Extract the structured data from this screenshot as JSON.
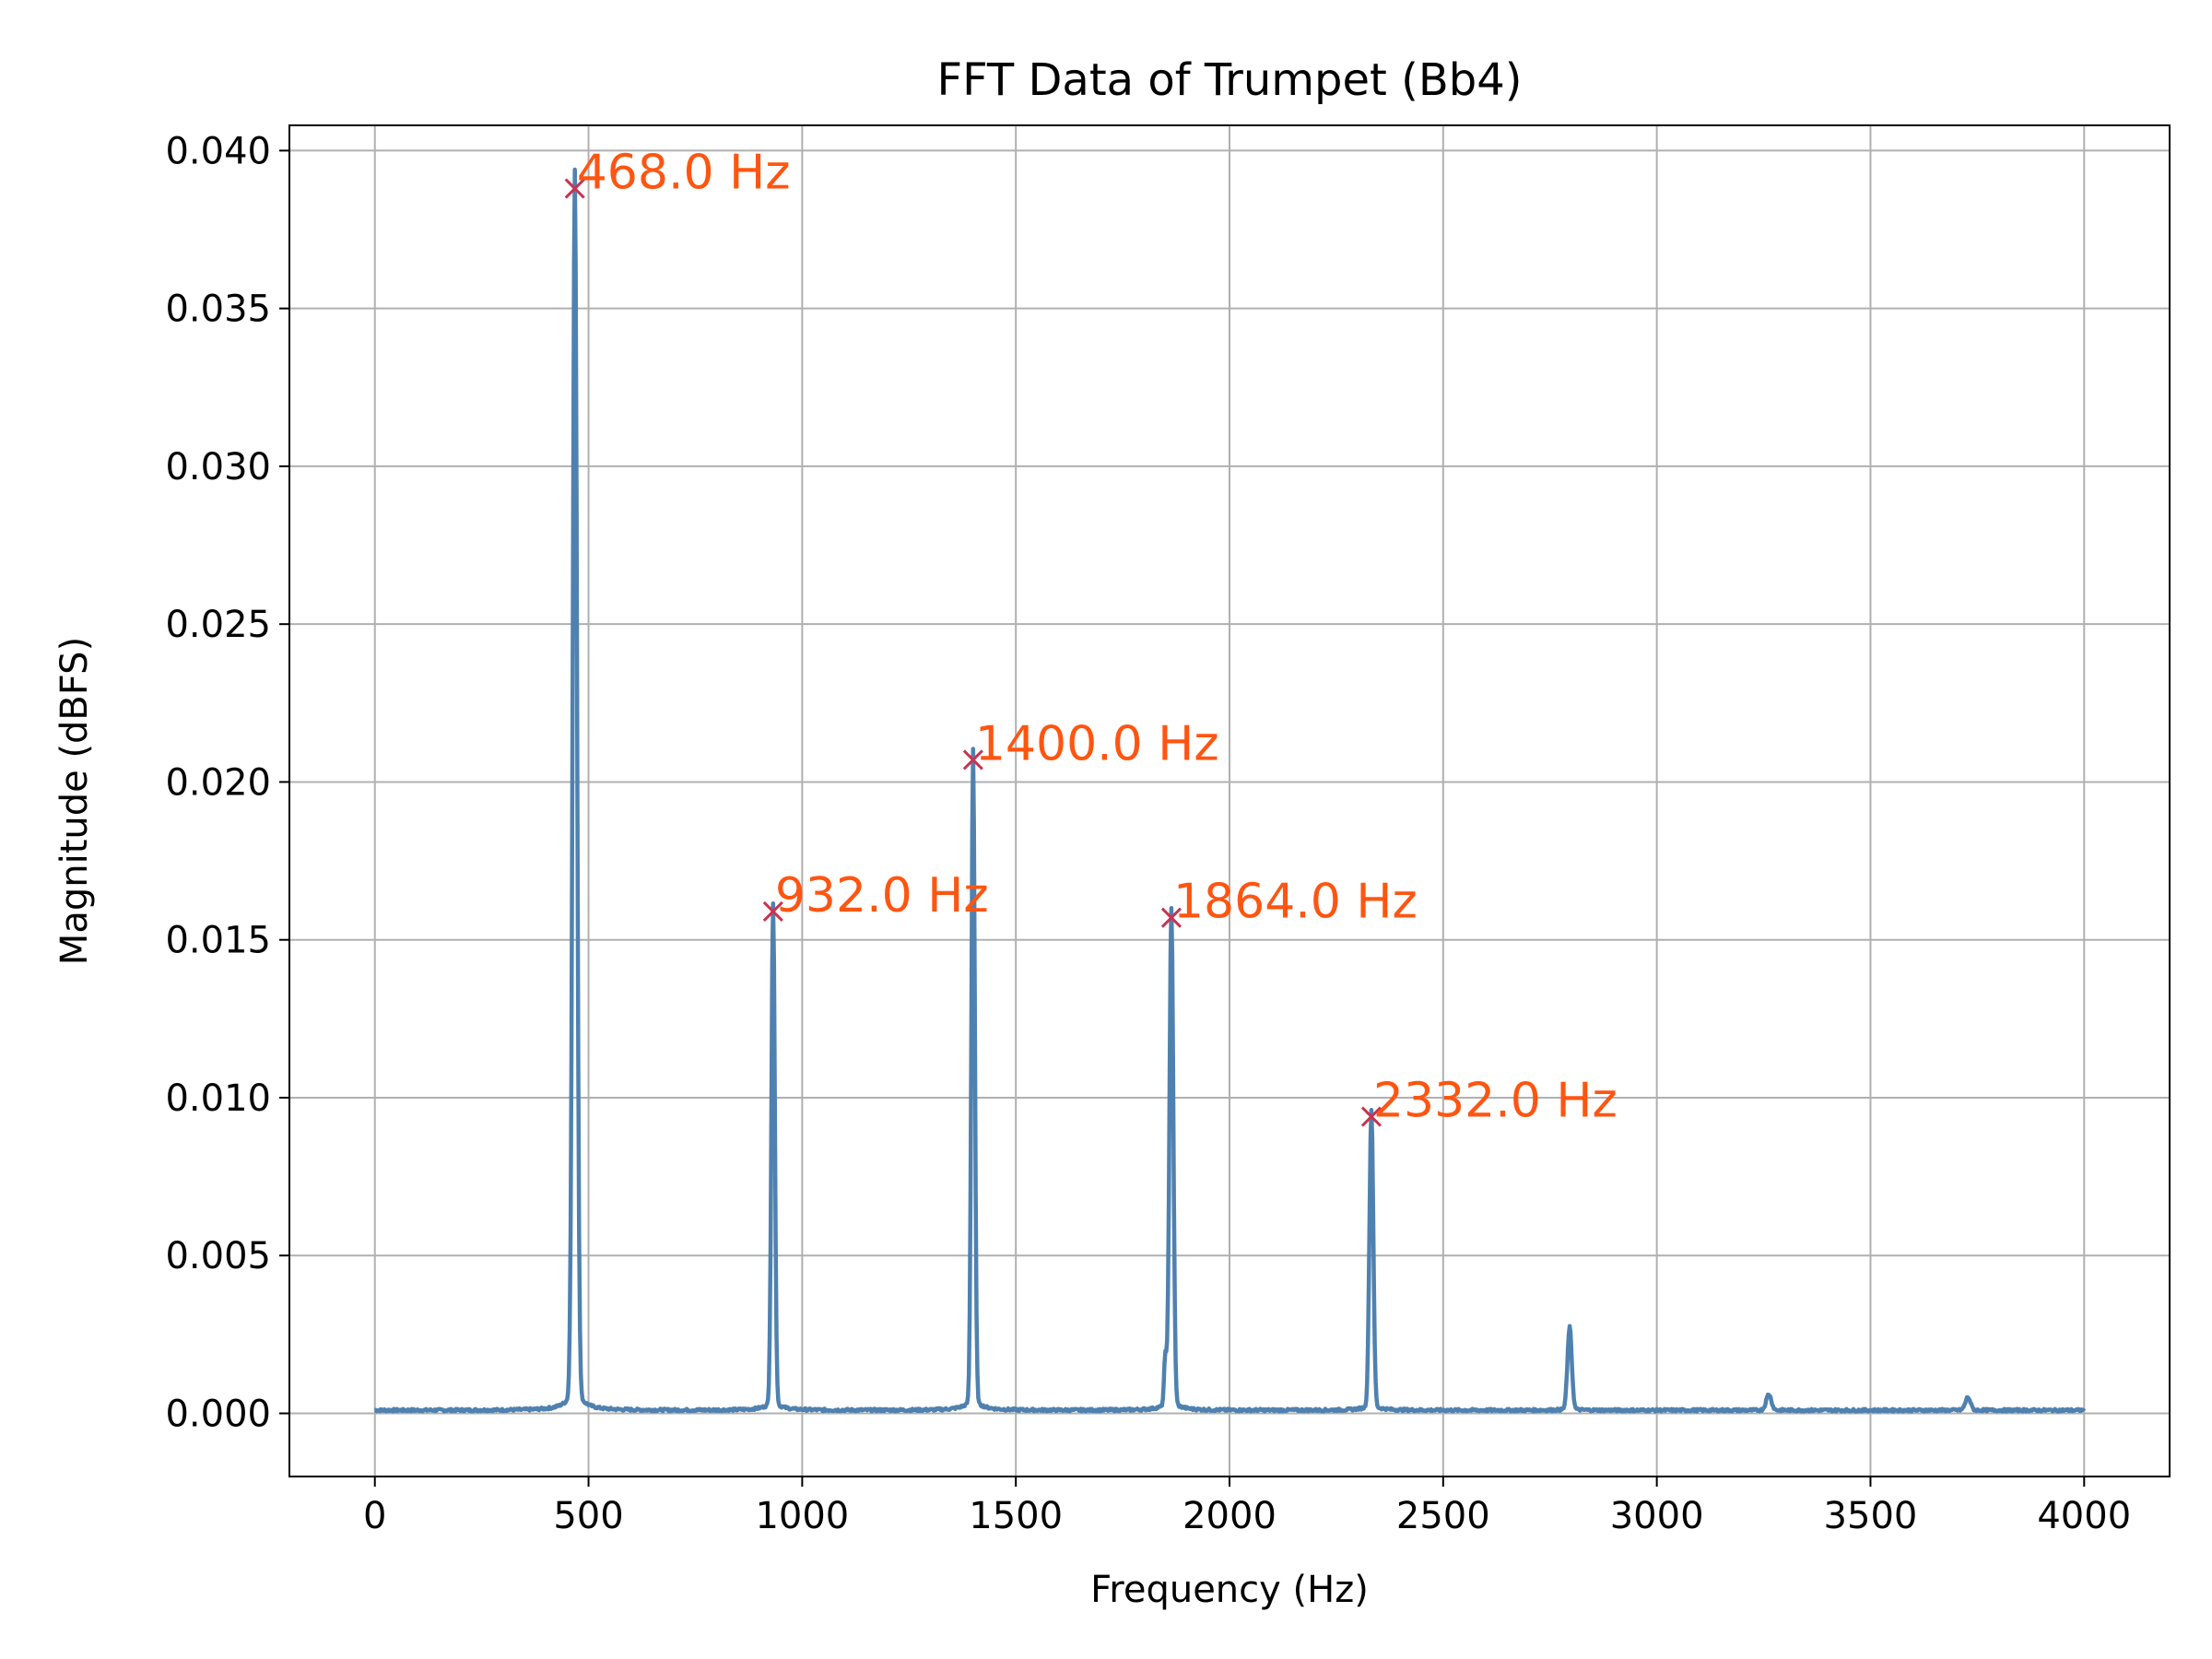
{
  "chart_data": {
    "type": "line",
    "title": "FFT Data of Trumpet (Bb4)",
    "xlabel": "Frequency (Hz)",
    "ylabel": "Magnitude (dBFS)",
    "xlim": [
      -200,
      4200
    ],
    "ylim": [
      -0.002,
      0.0408
    ],
    "x_ticks": [
      0,
      500,
      1000,
      1500,
      2000,
      2500,
      3000,
      3500,
      4000
    ],
    "x_tick_labels": [
      "0",
      "500",
      "1000",
      "1500",
      "2000",
      "2500",
      "3000",
      "3500",
      "4000"
    ],
    "y_ticks": [
      0.0,
      0.005,
      0.01,
      0.015,
      0.02,
      0.025,
      0.03,
      0.035,
      0.04
    ],
    "y_tick_labels": [
      "0.000",
      "0.005",
      "0.010",
      "0.015",
      "0.020",
      "0.025",
      "0.030",
      "0.035",
      "0.040"
    ],
    "grid": true,
    "line_color": "#4f81b0",
    "marker_color": "#c8334f",
    "label_color": "#ff5511",
    "spectrum": {
      "x_range": [
        0,
        4000
      ],
      "baseline": 0.0001,
      "peaks": [
        {
          "freq": 468,
          "mag": 0.0388,
          "width": 5
        },
        {
          "freq": 932,
          "mag": 0.0159,
          "width": 4
        },
        {
          "freq": 1400,
          "mag": 0.0207,
          "width": 4
        },
        {
          "freq": 1864,
          "mag": 0.0157,
          "width": 4.5
        },
        {
          "freq": 1850,
          "mag": 0.0016,
          "width": 3
        },
        {
          "freq": 2332,
          "mag": 0.0094,
          "width": 4.5
        },
        {
          "freq": 2796,
          "mag": 0.0026,
          "width": 5
        },
        {
          "freq": 3262,
          "mag": 0.0005,
          "width": 6
        },
        {
          "freq": 3728,
          "mag": 0.0004,
          "width": 6
        }
      ]
    },
    "annotations": [
      {
        "x": 468.0,
        "y": 0.0388,
        "label": "468.0 Hz"
      },
      {
        "x": 932.0,
        "y": 0.0159,
        "label": "932.0 Hz"
      },
      {
        "x": 1400.0,
        "y": 0.0207,
        "label": "1400.0 Hz"
      },
      {
        "x": 1864.0,
        "y": 0.0157,
        "label": "1864.0 Hz"
      },
      {
        "x": 2332.0,
        "y": 0.0094,
        "label": "2332.0 Hz"
      }
    ]
  }
}
